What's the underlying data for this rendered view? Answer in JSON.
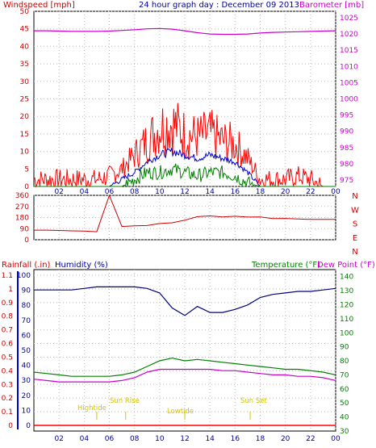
{
  "header": {
    "title": "24 hour graph day : December 09 2013",
    "windspeed_label": "Windspeed [mph]",
    "barometer_label": "Barometer [mb]"
  },
  "colors": {
    "wind_gust": "#ff0000",
    "wind_avg": "#0000cc",
    "wind_min": "#008000",
    "barometer": "#cc00cc",
    "direction": "#cc0000",
    "humidity": "#000080",
    "temperature": "#008000",
    "dewpoint": "#cc00cc",
    "rainfall": "#ff0000",
    "annotation": "#d4c400"
  },
  "x_ticks": [
    "02",
    "04",
    "06",
    "08",
    "10",
    "12",
    "14",
    "16",
    "18",
    "20",
    "22",
    "00"
  ],
  "panel_top": {
    "left_ticks": [
      "0",
      "5",
      "10",
      "15",
      "20",
      "25",
      "30",
      "35",
      "40",
      "45",
      "50"
    ],
    "right_ticks": [
      "975",
      "980",
      "985",
      "990",
      "995",
      "1000",
      "1005",
      "1010",
      "1015",
      "1020",
      "1025"
    ]
  },
  "panel_mid": {
    "left_ticks": [
      "0",
      "90",
      "180",
      "270",
      "360"
    ],
    "compass": [
      "N",
      "W",
      "S",
      "E",
      "N"
    ]
  },
  "panel_bottom": {
    "rain_label": "Rainfall (.in)",
    "humidity_label": "Humidity (%)",
    "temp_label": "Temperature (°F)",
    "dew_label": "Dew Point (°F)",
    "left_ticks_rain": [
      "0",
      "0.1",
      "0.2",
      "0.3",
      "0.4",
      "0.5",
      "0.6",
      "0.7",
      "0.8",
      "0.9",
      "1",
      "1.1"
    ],
    "left_ticks_hum": [
      "0",
      "10",
      "20",
      "30",
      "40",
      "50",
      "60",
      "70",
      "80",
      "90",
      "100"
    ],
    "right_ticks": [
      "30",
      "40",
      "50",
      "60",
      "70",
      "80",
      "90",
      "100",
      "110",
      "120",
      "130",
      "140"
    ],
    "annotations": {
      "hightide": "Hightide",
      "sunrise": "Sun Rise",
      "lowtide": "Lowtide",
      "sunset": "Sun Set"
    }
  },
  "chart_data": [
    {
      "type": "line",
      "xlabel": "",
      "x": [
        0,
        1,
        2,
        3,
        4,
        5,
        6,
        7,
        8,
        9,
        10,
        11,
        12,
        13,
        14,
        15,
        16,
        17,
        18,
        19,
        20,
        21,
        22,
        23,
        24
      ],
      "ylim": [
        0,
        50
      ],
      "y2lim": [
        973,
        1027
      ],
      "series": [
        {
          "name": "Windspeed",
          "axis": "left",
          "values": [
            2,
            2,
            2,
            2,
            2,
            2,
            3,
            5,
            9,
            13,
            17,
            18,
            15,
            14,
            15,
            13,
            12,
            8,
            2,
            2,
            2,
            3,
            2,
            0,
            0
          ]
        },
        {
          "name": "Windspeed",
          "axis": "left",
          "values": [
            0,
            0,
            0,
            0,
            0,
            0,
            0,
            2,
            4,
            7,
            9,
            10,
            9,
            8,
            9,
            8,
            7,
            4,
            0,
            0,
            0,
            0,
            0,
            0,
            0
          ]
        },
        {
          "name": "Windspeed",
          "axis": "left",
          "values": [
            0,
            0,
            0,
            0,
            0,
            0,
            0,
            0,
            2,
            4,
            4,
            5,
            4,
            3,
            4,
            4,
            3,
            1,
            0,
            0,
            0,
            0,
            0,
            0,
            0
          ]
        },
        {
          "name": "Barometer",
          "axis": "right",
          "values": [
            1021.0,
            1021.0,
            1020.9,
            1020.8,
            1020.8,
            1020.8,
            1020.9,
            1021.1,
            1021.3,
            1021.6,
            1021.7,
            1021.5,
            1021.0,
            1020.4,
            1020.0,
            1019.9,
            1019.9,
            1020.0,
            1020.3,
            1020.5,
            1020.6,
            1020.7,
            1020.8,
            1020.9,
            1021.0
          ]
        }
      ]
    },
    {
      "type": "line",
      "ylim": [
        0,
        360
      ],
      "x": [
        0,
        1,
        2,
        3,
        4,
        5,
        6,
        7,
        8,
        9,
        10,
        11,
        12,
        13,
        14,
        15,
        16,
        17,
        18,
        19,
        20,
        21,
        22,
        23,
        24
      ],
      "series": [
        {
          "name": "Wind direction",
          "values": [
            78,
            78,
            75,
            72,
            70,
            65,
            360,
            100,
            112,
            120,
            132,
            145,
            165,
            185,
            190,
            190,
            185,
            180,
            178,
            175,
            170,
            168,
            165,
            165,
            165
          ]
        }
      ]
    },
    {
      "type": "line",
      "x": [
        0,
        1,
        2,
        3,
        4,
        5,
        6,
        7,
        8,
        9,
        10,
        11,
        12,
        13,
        14,
        15,
        16,
        17,
        18,
        19,
        20,
        21,
        22,
        23,
        24
      ],
      "ylim": [
        0,
        100
      ],
      "y2lim": [
        30,
        145
      ],
      "series": [
        {
          "name": "Humidity",
          "axis": "left",
          "values": [
            94,
            94,
            94,
            94,
            95,
            96,
            96,
            96,
            96,
            95,
            92,
            82,
            77,
            83,
            79,
            79,
            81,
            84,
            89,
            91,
            92,
            93,
            93,
            94,
            95
          ]
        },
        {
          "name": "Temperature",
          "axis": "right",
          "values": [
            72,
            71,
            70,
            69,
            69,
            69,
            69,
            70,
            72,
            76,
            80,
            82,
            80,
            81,
            80,
            79,
            78,
            77,
            76,
            75,
            74,
            74,
            73,
            72,
            70
          ]
        },
        {
          "name": "Dew Point",
          "axis": "right",
          "values": [
            67,
            66,
            65,
            65,
            65,
            65,
            65,
            66,
            68,
            72,
            74,
            74,
            74,
            74,
            74,
            73,
            73,
            72,
            71,
            70,
            70,
            69,
            69,
            68,
            66
          ]
        },
        {
          "name": "Rainfall",
          "axis": "left",
          "values": [
            0,
            0,
            0,
            0,
            0,
            0,
            0,
            0,
            0,
            0,
            0,
            0,
            0,
            0,
            0,
            0,
            0,
            0,
            0,
            0,
            0,
            0,
            0,
            0,
            0
          ]
        }
      ]
    }
  ]
}
